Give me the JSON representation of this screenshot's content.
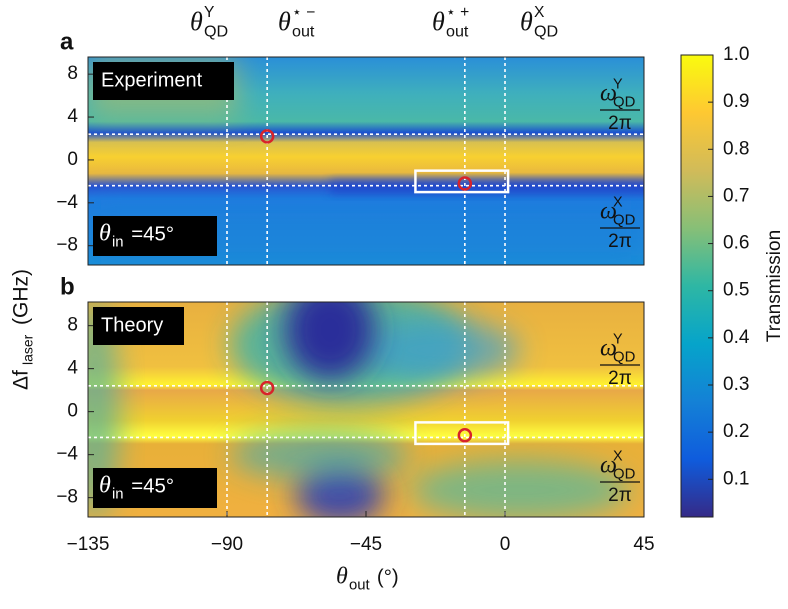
{
  "chart_data": [
    {
      "type": "heatmap",
      "letter": "a",
      "label": "Experiment",
      "theta_in": {
        "symbol": "θ",
        "sub": "in",
        "text": "=45°"
      },
      "top_labels": [
        {
          "symbol": "θ",
          "sup": "Y",
          "sub": "QD"
        },
        {
          "symbol": "θ",
          "sup": "⋆ −",
          "sub": "out"
        },
        {
          "symbol": "θ",
          "sup": "⋆ +",
          "sub": "out"
        },
        {
          "symbol": "θ",
          "sup": "X",
          "sub": "QD"
        }
      ],
      "omega_labels": [
        {
          "symbol": "ω",
          "sup": "Y",
          "sub": "QD",
          "denominator": "2π"
        },
        {
          "symbol": "ω",
          "sup": "X",
          "sub": "QD",
          "denominator": "2π"
        }
      ],
      "xlim": [
        -135,
        45
      ],
      "ylim": [
        -9.8,
        9.6
      ],
      "yticks": [
        8,
        4,
        0,
        {
          "value": -4,
          "label": "−4"
        },
        {
          "value": -8,
          "label": "−8"
        }
      ],
      "vlines": [
        -90,
        -77,
        -13,
        0
      ],
      "hlines": [
        2.4,
        -2.4
      ],
      "markers": {
        "x": [
          -77,
          -13
        ],
        "y": [
          2.2,
          -2.2
        ],
        "color": "#d8232a"
      },
      "box": {
        "xlim": [
          -29,
          1
        ],
        "ylim": [
          -3,
          -1
        ]
      }
    },
    {
      "type": "heatmap",
      "letter": "b",
      "label": "Theory",
      "theta_in": {
        "symbol": "θ",
        "sub": "in",
        "text": "=45°"
      },
      "omega_labels": [
        {
          "symbol": "ω",
          "sup": "Y",
          "sub": "QD",
          "denominator": "2π"
        },
        {
          "symbol": "ω",
          "sup": "X",
          "sub": "QD",
          "denominator": "2π"
        }
      ],
      "xlim": [
        -135,
        45
      ],
      "ylim": [
        -9.8,
        10.2
      ],
      "xticks": [
        {
          "value": -135,
          "label": "−135"
        },
        {
          "value": -90,
          "label": "−90"
        },
        {
          "value": -45,
          "label": "−45"
        },
        0,
        45
      ],
      "yticks": [
        8,
        4,
        0,
        {
          "value": -4,
          "label": "−4"
        },
        {
          "value": -8,
          "label": "−8"
        }
      ],
      "x_label": {
        "symbol": "θ",
        "sub": "out",
        "text": " (°)"
      },
      "y_label": {
        "symbol": "Δf",
        "sub": "laser",
        "text": " (GHz)"
      },
      "vlines": [
        -90,
        -77,
        -13,
        0
      ],
      "hlines": [
        2.4,
        -2.4
      ],
      "markers": {
        "x": [
          -77,
          -13
        ],
        "y": [
          2.2,
          -2.2
        ],
        "color": "#d8232a"
      },
      "box": {
        "xlim": [
          -29,
          1
        ],
        "ylim": [
          -3,
          -1
        ]
      }
    },
    {
      "type": "colorbar",
      "label": "Transmission",
      "clim": [
        0.02,
        1
      ],
      "ticks": [
        {
          "value": 1,
          "label": "1.0"
        },
        0.9,
        0.8,
        0.7,
        0.6,
        0.5,
        0.4,
        0.3,
        0.2,
        0.1
      ],
      "colors": [
        "#352a87",
        "#0f5cdd",
        "#1481d6",
        "#06a4ca",
        "#2eb7a4",
        "#87bf77",
        "#d1bb59",
        "#fec832",
        "#f9fb0e"
      ]
    }
  ]
}
